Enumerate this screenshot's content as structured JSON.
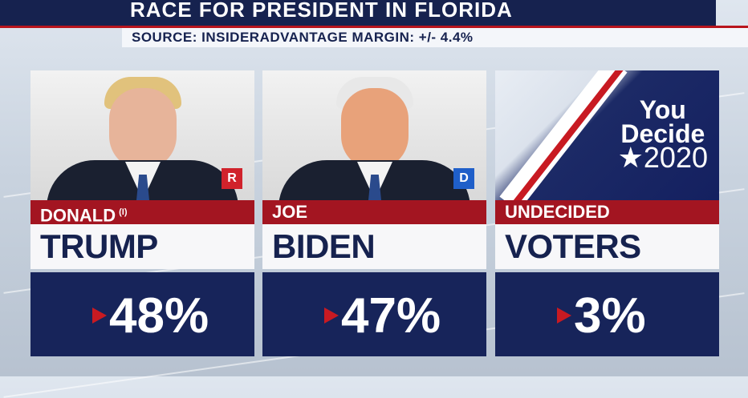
{
  "header": {
    "title": "RACE FOR PRESIDENT IN FLORIDA",
    "source": "SOURCE: INSIDERADVANTAGE  MARGIN: +/- 4.4%"
  },
  "candidates": [
    {
      "first": "DONALD",
      "incumbent_mark": "(I)",
      "last": "TRUMP",
      "party": "R",
      "percent": "48%"
    },
    {
      "first": "JOE",
      "last": "BIDEN",
      "party": "D",
      "percent": "47%"
    },
    {
      "first": "UNDECIDED",
      "last": "VOTERS",
      "percent": "3%"
    }
  ],
  "logo": {
    "line1": "You",
    "line2": "Decide",
    "line3": "★2020"
  },
  "colors": {
    "navy": "#17245a",
    "red": "#a31521",
    "republican": "#d0222b",
    "democrat": "#1f5fc9"
  }
}
